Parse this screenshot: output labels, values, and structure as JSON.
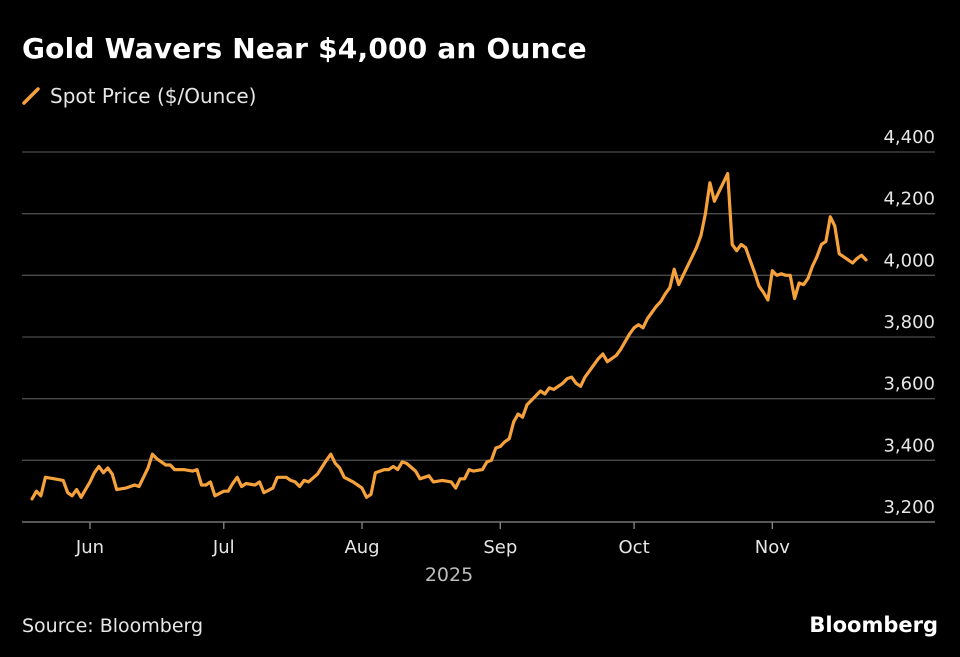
{
  "title": "Gold Wavers Near $4,000 an Ounce",
  "source": "Source: Bloomberg",
  "brand": "Bloomberg",
  "colors": {
    "background": "#000000",
    "line": "#f5a13c",
    "grid": "#4a4a4a",
    "text": "#e6e6e6"
  },
  "chart_data": {
    "type": "line",
    "title": "Gold Wavers Near $4,000 an Ounce",
    "xlabel": "2025",
    "ylabel": "",
    "ylim": [
      3200,
      4400
    ],
    "y_ticks": [
      4400,
      4200,
      4000,
      3800,
      3600,
      3400,
      3200
    ],
    "y_tick_labels": [
      "4,400",
      "4,200",
      "4,000",
      "3,800",
      "3,600",
      "3,400",
      "3,200"
    ],
    "x_ticks": [
      {
        "label": "Jun",
        "day": 5
      },
      {
        "label": "Jul",
        "day": 35
      },
      {
        "label": "Aug",
        "day": 66
      },
      {
        "label": "Sep",
        "day": 97
      },
      {
        "label": "Oct",
        "day": 127
      },
      {
        "label": "Nov",
        "day": 158
      }
    ],
    "x_range_days": [
      -10,
      190
    ],
    "grid": true,
    "legend": "top-left",
    "series": [
      {
        "name": "Spot Price ($/Ounce)",
        "points": [
          [
            -8,
            3275
          ],
          [
            -7,
            3300
          ],
          [
            -6,
            3285
          ],
          [
            -5,
            3345
          ],
          [
            -3,
            3340
          ],
          [
            -1,
            3335
          ],
          [
            0,
            3295
          ],
          [
            1,
            3285
          ],
          [
            2,
            3305
          ],
          [
            3,
            3280
          ],
          [
            4,
            3305
          ],
          [
            5,
            3330
          ],
          [
            6,
            3360
          ],
          [
            7,
            3380
          ],
          [
            8,
            3360
          ],
          [
            9,
            3375
          ],
          [
            10,
            3355
          ],
          [
            11,
            3305
          ],
          [
            13,
            3310
          ],
          [
            15,
            3320
          ],
          [
            16,
            3315
          ],
          [
            17,
            3345
          ],
          [
            18,
            3375
          ],
          [
            19,
            3420
          ],
          [
            20,
            3405
          ],
          [
            22,
            3385
          ],
          [
            23,
            3385
          ],
          [
            24,
            3370
          ],
          [
            26,
            3370
          ],
          [
            28,
            3365
          ],
          [
            29,
            3370
          ],
          [
            30,
            3320
          ],
          [
            31,
            3320
          ],
          [
            32,
            3330
          ],
          [
            33,
            3285
          ],
          [
            35,
            3300
          ],
          [
            36,
            3300
          ],
          [
            37,
            3325
          ],
          [
            38,
            3345
          ],
          [
            39,
            3315
          ],
          [
            40,
            3325
          ],
          [
            42,
            3320
          ],
          [
            43,
            3330
          ],
          [
            44,
            3295
          ],
          [
            46,
            3310
          ],
          [
            47,
            3345
          ],
          [
            49,
            3345
          ],
          [
            50,
            3335
          ],
          [
            51,
            3330
          ],
          [
            52,
            3315
          ],
          [
            53,
            3335
          ],
          [
            54,
            3330
          ],
          [
            56,
            3355
          ],
          [
            58,
            3400
          ],
          [
            59,
            3420
          ],
          [
            60,
            3390
          ],
          [
            61,
            3375
          ],
          [
            62,
            3345
          ],
          [
            64,
            3330
          ],
          [
            65,
            3320
          ],
          [
            66,
            3310
          ],
          [
            67,
            3280
          ],
          [
            68,
            3290
          ],
          [
            69,
            3360
          ],
          [
            71,
            3370
          ],
          [
            72,
            3370
          ],
          [
            73,
            3380
          ],
          [
            74,
            3370
          ],
          [
            75,
            3395
          ],
          [
            76,
            3390
          ],
          [
            78,
            3365
          ],
          [
            79,
            3340
          ],
          [
            80,
            3345
          ],
          [
            81,
            3350
          ],
          [
            82,
            3330
          ],
          [
            84,
            3335
          ],
          [
            86,
            3330
          ],
          [
            87,
            3310
          ],
          [
            88,
            3340
          ],
          [
            89,
            3340
          ],
          [
            90,
            3370
          ],
          [
            91,
            3365
          ],
          [
            93,
            3370
          ],
          [
            94,
            3395
          ],
          [
            95,
            3400
          ],
          [
            96,
            3440
          ],
          [
            97,
            3445
          ],
          [
            98,
            3460
          ],
          [
            99,
            3470
          ],
          [
            100,
            3525
          ],
          [
            101,
            3550
          ],
          [
            102,
            3540
          ],
          [
            103,
            3580
          ],
          [
            104,
            3595
          ],
          [
            105,
            3610
          ],
          [
            106,
            3625
          ],
          [
            107,
            3615
          ],
          [
            108,
            3635
          ],
          [
            109,
            3630
          ],
          [
            110,
            3640
          ],
          [
            111,
            3650
          ],
          [
            112,
            3665
          ],
          [
            113,
            3670
          ],
          [
            114,
            3650
          ],
          [
            115,
            3640
          ],
          [
            116,
            3670
          ],
          [
            117,
            3690
          ],
          [
            118,
            3710
          ],
          [
            119,
            3730
          ],
          [
            120,
            3745
          ],
          [
            121,
            3720
          ],
          [
            122,
            3730
          ],
          [
            123,
            3740
          ],
          [
            124,
            3760
          ],
          [
            125,
            3785
          ],
          [
            126,
            3810
          ],
          [
            127,
            3830
          ],
          [
            128,
            3840
          ],
          [
            129,
            3830
          ],
          [
            130,
            3860
          ],
          [
            132,
            3900
          ],
          [
            133,
            3915
          ],
          [
            134,
            3940
          ],
          [
            135,
            3960
          ],
          [
            136,
            4020
          ],
          [
            137,
            3970
          ],
          [
            138,
            4000
          ],
          [
            139,
            4030
          ],
          [
            140,
            4060
          ],
          [
            141,
            4090
          ],
          [
            142,
            4130
          ],
          [
            143,
            4200
          ],
          [
            144,
            4300
          ],
          [
            145,
            4240
          ],
          [
            146,
            4270
          ],
          [
            147,
            4300
          ],
          [
            148,
            4330
          ],
          [
            149,
            4100
          ],
          [
            150,
            4080
          ],
          [
            151,
            4100
          ],
          [
            152,
            4090
          ],
          [
            153,
            4050
          ],
          [
            154,
            4010
          ],
          [
            155,
            3965
          ],
          [
            156,
            3945
          ],
          [
            157,
            3920
          ],
          [
            158,
            4015
          ],
          [
            159,
            4000
          ],
          [
            160,
            4005
          ],
          [
            161,
            4000
          ],
          [
            162,
            4000
          ],
          [
            163,
            3925
          ],
          [
            164,
            3975
          ],
          [
            165,
            3970
          ],
          [
            166,
            3990
          ],
          [
            167,
            4030
          ],
          [
            168,
            4060
          ],
          [
            169,
            4100
          ],
          [
            170,
            4110
          ],
          [
            171,
            4190
          ],
          [
            172,
            4160
          ],
          [
            173,
            4070
          ],
          [
            174,
            4060
          ],
          [
            175,
            4050
          ],
          [
            176,
            4040
          ],
          [
            177,
            4055
          ],
          [
            178,
            4065
          ],
          [
            179,
            4050
          ]
        ]
      }
    ]
  }
}
